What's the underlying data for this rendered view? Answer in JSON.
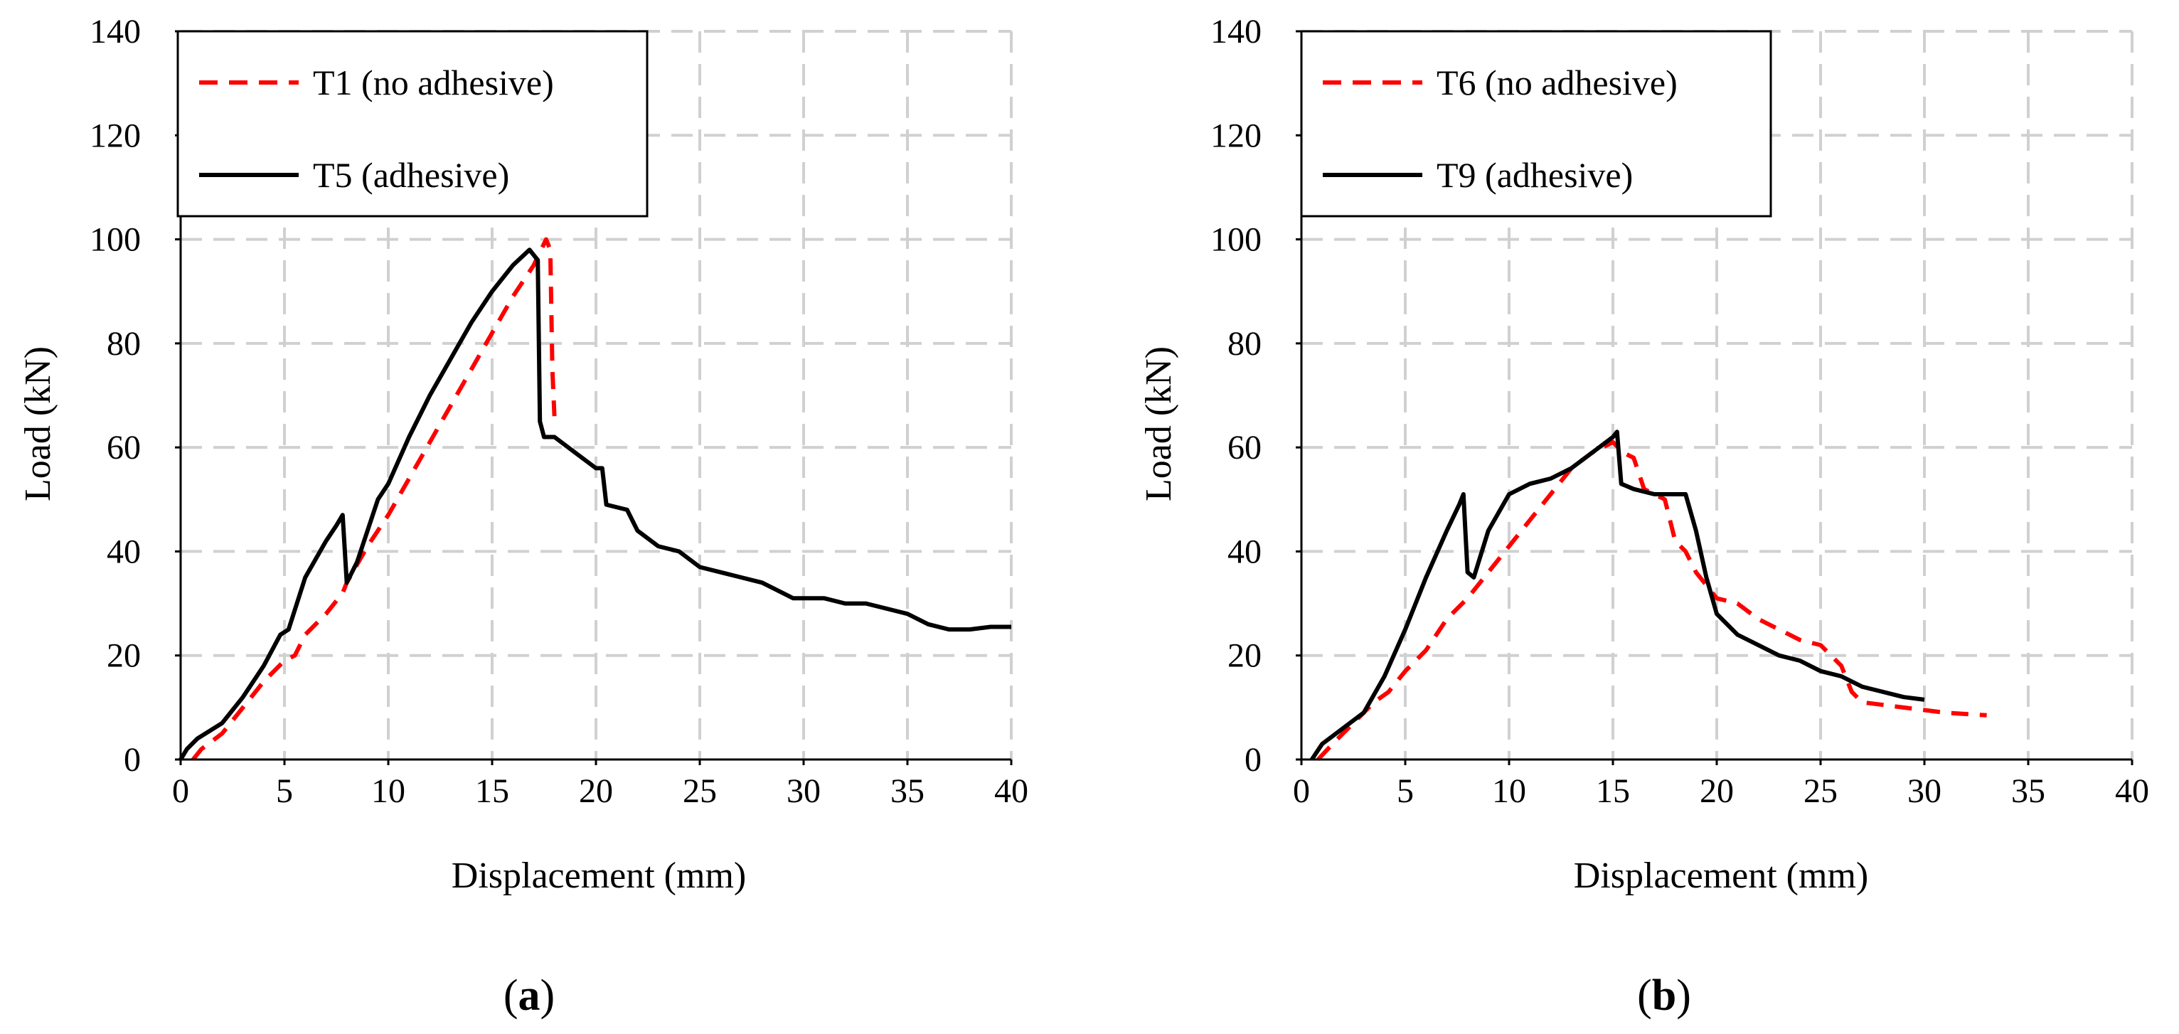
{
  "chart_data": [
    {
      "type": "line",
      "panel_label": "a",
      "xlabel": "Displacement (mm)",
      "ylabel": "Load (kN)",
      "xlim": [
        0,
        40
      ],
      "ylim": [
        0,
        140
      ],
      "xticks": [
        "0",
        "5",
        "10",
        "15",
        "20",
        "25",
        "30",
        "35",
        "40"
      ],
      "yticks": [
        "0",
        "20",
        "40",
        "60",
        "80",
        "100",
        "120",
        "140"
      ],
      "grid": true,
      "legend_position": "top-left",
      "series": [
        {
          "name": "T1 (no adhesive)",
          "color": "#ff0000",
          "style": "dashed",
          "points": [
            [
              0.6,
              0
            ],
            [
              1,
              2
            ],
            [
              2,
              5
            ],
            [
              3,
              10
            ],
            [
              4,
              15
            ],
            [
              5,
              19
            ],
            [
              5.5,
              20
            ],
            [
              6,
              24
            ],
            [
              7,
              28
            ],
            [
              7.8,
              32
            ],
            [
              8,
              34
            ],
            [
              9,
              41
            ],
            [
              10,
              47
            ],
            [
              11,
              54
            ],
            [
              12,
              61
            ],
            [
              13,
              68
            ],
            [
              14,
              75
            ],
            [
              15,
              82
            ],
            [
              16,
              89
            ],
            [
              17,
              95
            ],
            [
              17.6,
              100
            ],
            [
              17.8,
              98
            ],
            [
              17.9,
              75
            ],
            [
              18,
              66
            ]
          ]
        },
        {
          "name": "T5 (adhesive)",
          "color": "#000000",
          "style": "solid",
          "points": [
            [
              0,
              0
            ],
            [
              0.3,
              2
            ],
            [
              0.8,
              4
            ],
            [
              2,
              7
            ],
            [
              3,
              12
            ],
            [
              4,
              18
            ],
            [
              4.8,
              24
            ],
            [
              5.2,
              25
            ],
            [
              6,
              35
            ],
            [
              7,
              42
            ],
            [
              7.5,
              45
            ],
            [
              7.8,
              47
            ],
            [
              8,
              34
            ],
            [
              8.5,
              38
            ],
            [
              9,
              44
            ],
            [
              9.5,
              50
            ],
            [
              10,
              53
            ],
            [
              11,
              62
            ],
            [
              12,
              70
            ],
            [
              13,
              77
            ],
            [
              14,
              84
            ],
            [
              15,
              90
            ],
            [
              16,
              95
            ],
            [
              16.8,
              98
            ],
            [
              17.2,
              96
            ],
            [
              17.3,
              65
            ],
            [
              17.5,
              62
            ],
            [
              18,
              62
            ],
            [
              19,
              59
            ],
            [
              20,
              56
            ],
            [
              20.3,
              56
            ],
            [
              20.5,
              49
            ],
            [
              21.5,
              48
            ],
            [
              22,
              44
            ],
            [
              23,
              41
            ],
            [
              24,
              40
            ],
            [
              25,
              37
            ],
            [
              26,
              36
            ],
            [
              27,
              35
            ],
            [
              28,
              34
            ],
            [
              29,
              32
            ],
            [
              29.5,
              31
            ],
            [
              30,
              31
            ],
            [
              31,
              31
            ],
            [
              32,
              30
            ],
            [
              33,
              30
            ],
            [
              34,
              29
            ],
            [
              35,
              28
            ],
            [
              36,
              26
            ],
            [
              37,
              25
            ],
            [
              38,
              25
            ],
            [
              39,
              25.5
            ],
            [
              40,
              25.5
            ]
          ]
        }
      ]
    },
    {
      "type": "line",
      "panel_label": "b",
      "xlabel": "Displacement (mm)",
      "ylabel": "Load (kN)",
      "xlim": [
        0,
        40
      ],
      "ylim": [
        0,
        140
      ],
      "xticks": [
        "0",
        "5",
        "10",
        "15",
        "20",
        "25",
        "30",
        "35",
        "40"
      ],
      "yticks": [
        "0",
        "20",
        "40",
        "60",
        "80",
        "100",
        "120",
        "140"
      ],
      "grid": true,
      "legend_position": "top-left",
      "series": [
        {
          "name": "T6 (no adhesive)",
          "color": "#ff0000",
          "style": "dashed",
          "points": [
            [
              0.8,
              0
            ],
            [
              1.5,
              3
            ],
            [
              2.5,
              7
            ],
            [
              3.5,
              11
            ],
            [
              4.2,
              13
            ],
            [
              5,
              17
            ],
            [
              6,
              21
            ],
            [
              7,
              27
            ],
            [
              8,
              31
            ],
            [
              9,
              36
            ],
            [
              10,
              41
            ],
            [
              11,
              46
            ],
            [
              12,
              51
            ],
            [
              13,
              56
            ],
            [
              14,
              59
            ],
            [
              15,
              61
            ],
            [
              15.5,
              59
            ],
            [
              16,
              58
            ],
            [
              16.5,
              52
            ],
            [
              17,
              51
            ],
            [
              17.5,
              50
            ],
            [
              18,
              42
            ],
            [
              18.5,
              40
            ],
            [
              19,
              36
            ],
            [
              20,
              31
            ],
            [
              21,
              30
            ],
            [
              22,
              27
            ],
            [
              23,
              25
            ],
            [
              24,
              23
            ],
            [
              25,
              22
            ],
            [
              26,
              18
            ],
            [
              26.5,
              13
            ],
            [
              27,
              11
            ],
            [
              28,
              10.5
            ],
            [
              29,
              10
            ],
            [
              30,
              9.5
            ],
            [
              31,
              9
            ],
            [
              33,
              8.5
            ]
          ]
        },
        {
          "name": "T9 (adhesive)",
          "color": "#000000",
          "style": "solid",
          "points": [
            [
              0.5,
              0
            ],
            [
              1,
              3
            ],
            [
              2,
              6
            ],
            [
              3,
              9
            ],
            [
              4,
              16
            ],
            [
              5,
              25
            ],
            [
              6,
              35
            ],
            [
              7,
              44
            ],
            [
              7.6,
              49
            ],
            [
              7.8,
              51
            ],
            [
              8,
              36
            ],
            [
              8.3,
              35
            ],
            [
              9,
              44
            ],
            [
              10,
              51
            ],
            [
              11,
              53
            ],
            [
              12,
              54
            ],
            [
              13,
              56
            ],
            [
              14,
              59
            ],
            [
              15,
              62
            ],
            [
              15.2,
              63
            ],
            [
              15.4,
              53
            ],
            [
              16,
              52
            ],
            [
              17,
              51
            ],
            [
              18,
              51
            ],
            [
              18.5,
              51
            ],
            [
              19,
              44
            ],
            [
              19.5,
              35
            ],
            [
              20,
              28
            ],
            [
              21,
              24
            ],
            [
              22,
              22
            ],
            [
              23,
              20
            ],
            [
              24,
              19
            ],
            [
              25,
              17
            ],
            [
              26,
              16
            ],
            [
              27,
              14
            ],
            [
              28,
              13
            ],
            [
              29,
              12
            ],
            [
              30,
              11.5
            ]
          ]
        }
      ]
    }
  ]
}
